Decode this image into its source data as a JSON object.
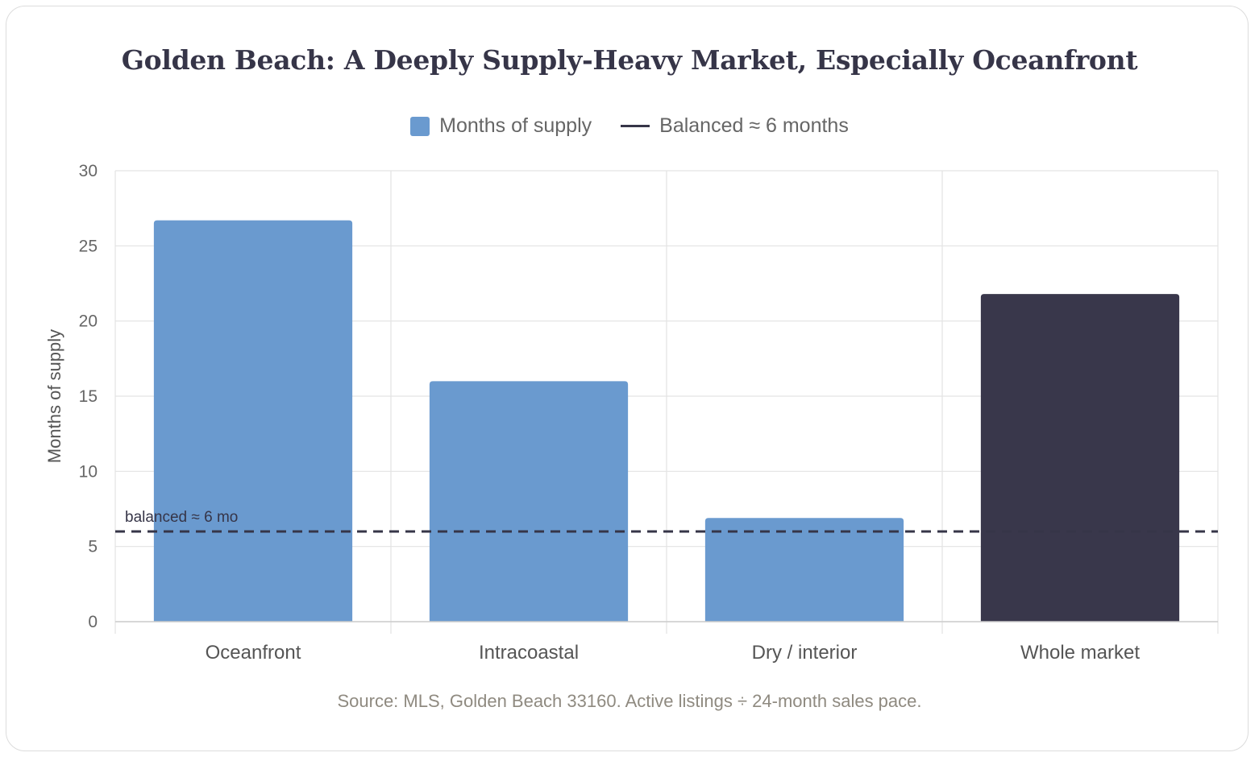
{
  "chart_data": {
    "type": "bar",
    "title": "Golden Beach: A Deeply Supply-Heavy Market, Especially Oceanfront",
    "categories": [
      "Oceanfront",
      "Intracoastal",
      "Dry / interior",
      "Whole market"
    ],
    "series": [
      {
        "name": "Months of supply",
        "values": [
          26.7,
          16.0,
          6.9,
          21.8
        ]
      }
    ],
    "bar_colors": [
      "#6a9acf",
      "#6a9acf",
      "#6a9acf",
      "#39374b"
    ],
    "ylabel": "Months of supply",
    "xlabel": "",
    "ylim": [
      0,
      30
    ],
    "yticks": [
      0,
      5,
      10,
      15,
      20,
      25,
      30
    ],
    "grid": true,
    "legend_placement": "top-center",
    "reference_line": {
      "value": 6,
      "legend_label": "Balanced ≈ 6 months",
      "annotation": "balanced ≈ 6 mo",
      "color": "#363548",
      "style": "dashed"
    },
    "source": "Source: MLS, Golden Beach 33160. Active listings ÷ 24-month sales pace."
  }
}
